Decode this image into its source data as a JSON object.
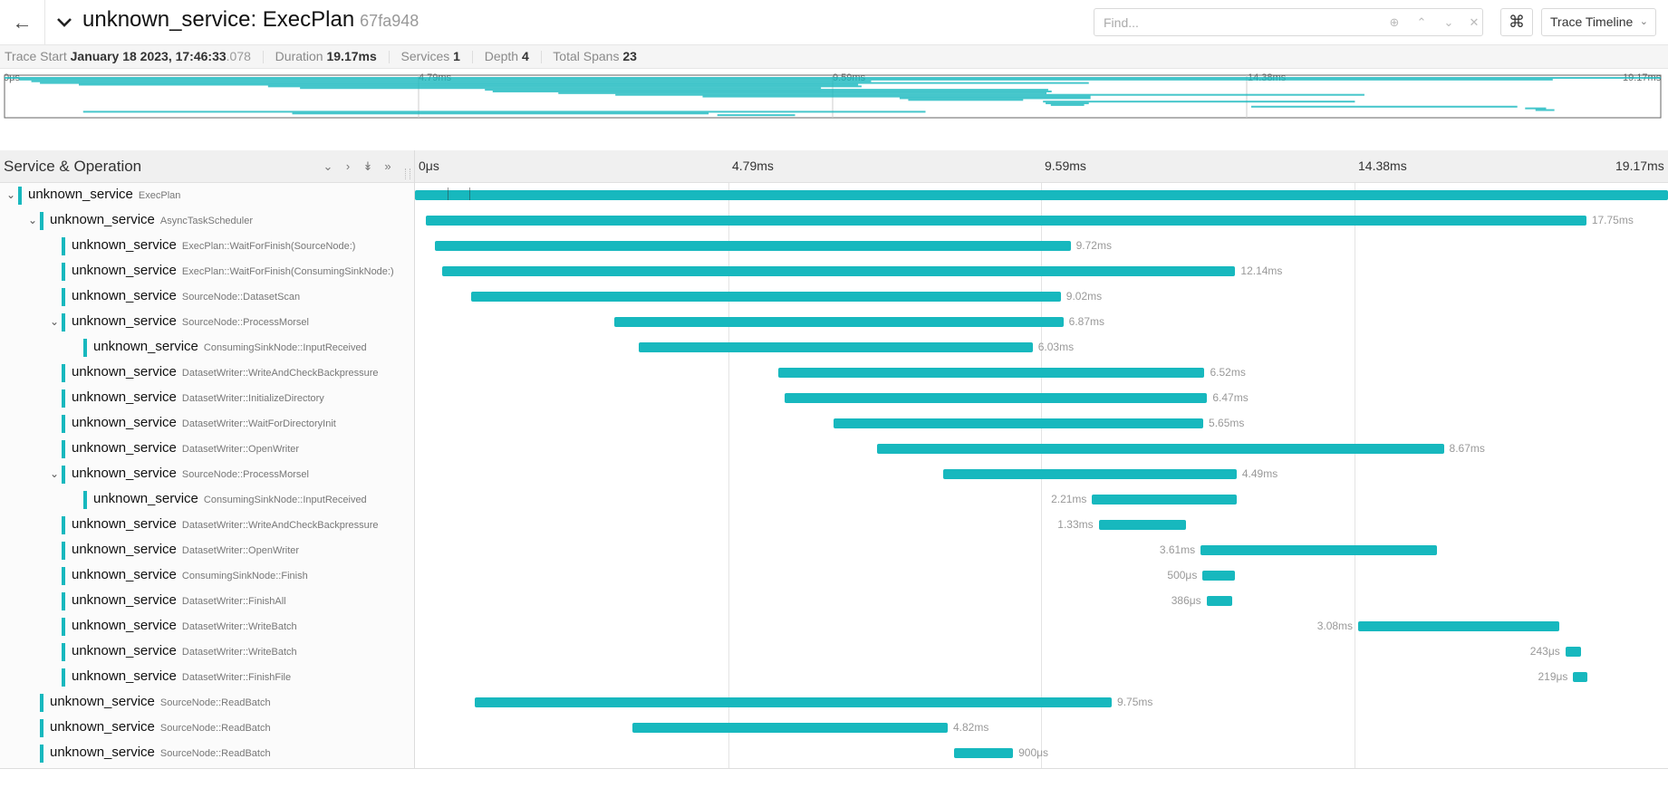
{
  "header": {
    "title": "unknown_service: ExecPlan",
    "trace_id": "67fa948",
    "find_placeholder": "Find...",
    "cmd_symbol": "⌘",
    "view_mode": "Trace Timeline"
  },
  "summary": {
    "trace_start_label": "Trace Start",
    "trace_start_value": "January 18 2023, 17:46:33",
    "trace_start_ms": ".078",
    "duration_label": "Duration",
    "duration_value": "19.17ms",
    "services_label": "Services",
    "services_value": "1",
    "depth_label": "Depth",
    "depth_value": "4",
    "total_spans_label": "Total Spans",
    "total_spans_value": "23"
  },
  "ticks": [
    "0μs",
    "4.79ms",
    "9.59ms",
    "14.38ms",
    "19.17ms"
  ],
  "column_title": "Service & Operation",
  "accent_color": "#17b8be",
  "total_duration_ms": 19.17,
  "spans": [
    {
      "service": "unknown_service",
      "operation": "ExecPlan",
      "depth": 0,
      "toggle": "expanded",
      "start_ms": 0.0,
      "duration_ms": 19.17,
      "label": ""
    },
    {
      "service": "unknown_service",
      "operation": "AsyncTaskScheduler",
      "depth": 1,
      "toggle": "expanded",
      "start_ms": 0.17,
      "duration_ms": 17.75,
      "label": "17.75ms"
    },
    {
      "service": "unknown_service",
      "operation": "ExecPlan::WaitForFinish(SourceNode:)",
      "depth": 2,
      "toggle": "",
      "start_ms": 0.31,
      "duration_ms": 9.72,
      "label": "9.72ms"
    },
    {
      "service": "unknown_service",
      "operation": "ExecPlan::WaitForFinish(ConsumingSinkNode:)",
      "depth": 2,
      "toggle": "",
      "start_ms": 0.41,
      "duration_ms": 12.14,
      "label": "12.14ms"
    },
    {
      "service": "unknown_service",
      "operation": "SourceNode::DatasetScan",
      "depth": 2,
      "toggle": "",
      "start_ms": 0.86,
      "duration_ms": 9.02,
      "label": "9.02ms"
    },
    {
      "service": "unknown_service",
      "operation": "SourceNode::ProcessMorsel",
      "depth": 2,
      "toggle": "expanded",
      "start_ms": 3.05,
      "duration_ms": 6.87,
      "label": "6.87ms"
    },
    {
      "service": "unknown_service",
      "operation": "ConsumingSinkNode::InputReceived",
      "depth": 3,
      "toggle": "",
      "start_ms": 3.42,
      "duration_ms": 6.03,
      "label": "6.03ms"
    },
    {
      "service": "unknown_service",
      "operation": "DatasetWriter::WriteAndCheckBackpressure",
      "depth": 2,
      "toggle": "",
      "start_ms": 5.56,
      "duration_ms": 6.52,
      "label": "6.52ms"
    },
    {
      "service": "unknown_service",
      "operation": "DatasetWriter::InitializeDirectory",
      "depth": 2,
      "toggle": "",
      "start_ms": 5.65,
      "duration_ms": 6.47,
      "label": "6.47ms"
    },
    {
      "service": "unknown_service",
      "operation": "DatasetWriter::WaitForDirectoryInit",
      "depth": 2,
      "toggle": "",
      "start_ms": 6.41,
      "duration_ms": 5.65,
      "label": "5.65ms"
    },
    {
      "service": "unknown_service",
      "operation": "DatasetWriter::OpenWriter",
      "depth": 2,
      "toggle": "",
      "start_ms": 7.07,
      "duration_ms": 8.67,
      "label": "8.67ms"
    },
    {
      "service": "unknown_service",
      "operation": "SourceNode::ProcessMorsel",
      "depth": 2,
      "toggle": "expanded",
      "start_ms": 8.08,
      "duration_ms": 4.49,
      "label": "4.49ms"
    },
    {
      "service": "unknown_service",
      "operation": "ConsumingSinkNode::InputReceived",
      "depth": 3,
      "toggle": "",
      "start_ms": 10.36,
      "duration_ms": 2.21,
      "label": "2.21ms"
    },
    {
      "service": "unknown_service",
      "operation": "DatasetWriter::WriteAndCheckBackpressure",
      "depth": 2,
      "toggle": "",
      "start_ms": 10.46,
      "duration_ms": 1.33,
      "label": "1.33ms"
    },
    {
      "service": "unknown_service",
      "operation": "DatasetWriter::OpenWriter",
      "depth": 2,
      "toggle": "",
      "start_ms": 12.02,
      "duration_ms": 3.61,
      "label": "3.61ms"
    },
    {
      "service": "unknown_service",
      "operation": "ConsumingSinkNode::Finish",
      "depth": 2,
      "toggle": "",
      "start_ms": 12.05,
      "duration_ms": 0.5,
      "label": "500μs"
    },
    {
      "service": "unknown_service",
      "operation": "DatasetWriter::FinishAll",
      "depth": 2,
      "toggle": "",
      "start_ms": 12.11,
      "duration_ms": 0.386,
      "label": "386μs"
    },
    {
      "service": "unknown_service",
      "operation": "DatasetWriter::WriteBatch",
      "depth": 2,
      "toggle": "",
      "start_ms": 14.43,
      "duration_ms": 3.08,
      "label": "3.08ms"
    },
    {
      "service": "unknown_service",
      "operation": "DatasetWriter::WriteBatch",
      "depth": 2,
      "toggle": "",
      "start_ms": 17.6,
      "duration_ms": 0.243,
      "label": "243μs"
    },
    {
      "service": "unknown_service",
      "operation": "DatasetWriter::FinishFile",
      "depth": 2,
      "toggle": "",
      "start_ms": 17.72,
      "duration_ms": 0.219,
      "label": "219μs"
    },
    {
      "service": "unknown_service",
      "operation": "SourceNode::ReadBatch",
      "depth": 1,
      "toggle": "",
      "start_ms": 0.91,
      "duration_ms": 9.75,
      "label": "9.75ms"
    },
    {
      "service": "unknown_service",
      "operation": "SourceNode::ReadBatch",
      "depth": 1,
      "toggle": "",
      "start_ms": 3.33,
      "duration_ms": 4.82,
      "label": "4.82ms"
    },
    {
      "service": "unknown_service",
      "operation": "SourceNode::ReadBatch",
      "depth": 1,
      "toggle": "",
      "start_ms": 8.25,
      "duration_ms": 0.9,
      "label": "900μs"
    }
  ]
}
